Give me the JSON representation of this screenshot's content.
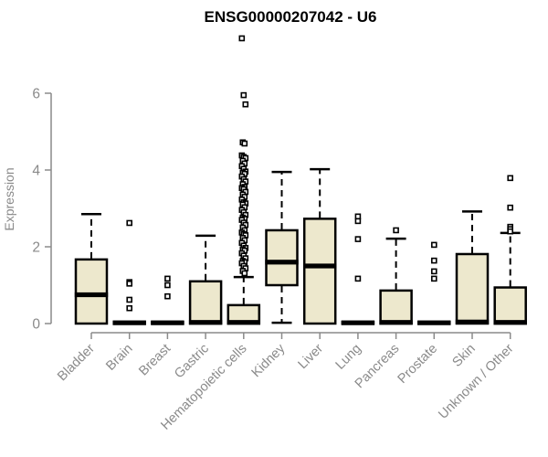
{
  "window": {
    "background": "#ffffff"
  },
  "chart_data": {
    "type": "boxplot",
    "title": "ENSG00000207042 - U6",
    "xlabel": "",
    "ylabel": "Expression",
    "ylim": [
      0,
      7.5
    ],
    "yticks": [
      0,
      2,
      4,
      6
    ],
    "grid": false,
    "legend": "none",
    "style": {
      "box_fill": "#EDE8CD",
      "box_stroke": "#000000",
      "axis_color": "#8a8a8a",
      "outlier_marker": "open-square",
      "whisker_style": "dashed"
    },
    "categories": [
      "Bladder",
      "Brain",
      "Breast",
      "Gastric",
      "Hematopoietic cells",
      "Kidney",
      "Liver",
      "Lung",
      "Pancreas",
      "Prostate",
      "Skin",
      "Unknown / Other"
    ],
    "series": [
      {
        "category": "Bladder",
        "q1": 0,
        "median": 0.75,
        "q3": 1.67,
        "whisker_low": 0,
        "whisker_high": 2.85,
        "outliers": []
      },
      {
        "category": "Brain",
        "q1": 0,
        "median": 0.02,
        "q3": 0.04,
        "whisker_low": 0,
        "whisker_high": 0.04,
        "outliers": [
          2.62,
          1.08,
          1.04,
          0.62,
          0.4
        ]
      },
      {
        "category": "Breast",
        "q1": 0,
        "median": 0.02,
        "q3": 0.04,
        "whisker_low": 0,
        "whisker_high": 0.04,
        "outliers": [
          1.17,
          1.0,
          0.71
        ]
      },
      {
        "category": "Gastric",
        "q1": 0,
        "median": 0.03,
        "q3": 1.1,
        "whisker_low": 0,
        "whisker_high": 2.29,
        "outliers": []
      },
      {
        "category": "Hematopoietic cells",
        "q1": 0,
        "median": 0.03,
        "q3": 0.48,
        "whisker_low": 0,
        "whisker_high": 1.21,
        "outliers": [
          7.43,
          5.95,
          5.71,
          4.72,
          4.69,
          4.38,
          4.34,
          4.31,
          4.24,
          4.17,
          4.1,
          4.03,
          3.96,
          3.93,
          3.9,
          3.83,
          3.76,
          3.7,
          3.63,
          3.56,
          3.53,
          3.5,
          3.43,
          3.36,
          3.3,
          3.23,
          3.16,
          3.13,
          3.1,
          3.03,
          2.96,
          2.9,
          2.83,
          2.76,
          2.73,
          2.7,
          2.63,
          2.57,
          2.5,
          2.43,
          2.37,
          2.33,
          2.3,
          2.23,
          2.17,
          2.1,
          2.03,
          1.97,
          1.93,
          1.9,
          1.83,
          1.77,
          1.7,
          1.63,
          1.6,
          1.57,
          1.5,
          1.44,
          1.37,
          1.31
        ]
      },
      {
        "category": "Kidney",
        "q1": 1.0,
        "median": 1.6,
        "q3": 2.43,
        "whisker_low": 0.02,
        "whisker_high": 3.95,
        "outliers": []
      },
      {
        "category": "Liver",
        "q1": 0,
        "median": 1.5,
        "q3": 2.73,
        "whisker_low": 0,
        "whisker_high": 4.02,
        "outliers": []
      },
      {
        "category": "Lung",
        "q1": 0,
        "median": 0.02,
        "q3": 0.04,
        "whisker_low": 0,
        "whisker_high": 0.04,
        "outliers": [
          2.79,
          2.67,
          2.2,
          1.17
        ]
      },
      {
        "category": "Pancreas",
        "q1": 0,
        "median": 0.03,
        "q3": 0.86,
        "whisker_low": 0,
        "whisker_high": 2.21,
        "outliers": [
          2.43
        ]
      },
      {
        "category": "Prostate",
        "q1": 0,
        "median": 0.02,
        "q3": 0.04,
        "whisker_low": 0,
        "whisker_high": 0.04,
        "outliers": [
          2.05,
          1.64,
          1.36,
          1.17
        ]
      },
      {
        "category": "Skin",
        "q1": 0,
        "median": 0.04,
        "q3": 1.81,
        "whisker_low": 0,
        "whisker_high": 2.92,
        "outliers": []
      },
      {
        "category": "Unknown / Other",
        "q1": 0,
        "median": 0.03,
        "q3": 0.94,
        "whisker_low": 0,
        "whisker_high": 2.36,
        "outliers": [
          3.79,
          3.02,
          2.52,
          2.46,
          2.4
        ]
      }
    ]
  }
}
